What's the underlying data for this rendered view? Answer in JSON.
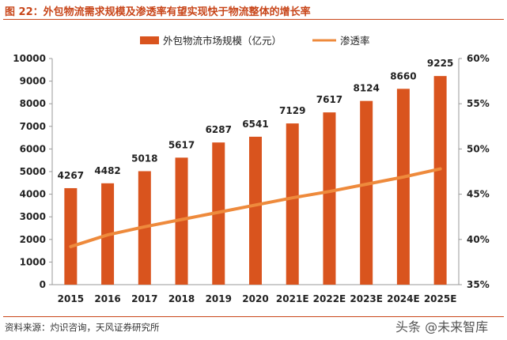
{
  "figure": {
    "title": "图 22：外包物流需求规模及渗透率有望实现快于物流整体的增长率",
    "source": "资料来源：灼识咨询，天风证券研究所",
    "watermark": "头条 @未来智库"
  },
  "colors": {
    "bar": "#d9541e",
    "line": "#ee8a3c",
    "title": "#c8461a"
  },
  "chart_data": {
    "type": "bar",
    "categories": [
      "2015",
      "2016",
      "2017",
      "2018",
      "2019",
      "2020",
      "2021E",
      "2022E",
      "2023E",
      "2024E",
      "2025E"
    ],
    "series": [
      {
        "name": "外包物流市场规模（亿元）",
        "type": "bar",
        "axis": "left",
        "values": [
          4267,
          4482,
          5018,
          5617,
          6287,
          6541,
          7129,
          7617,
          8124,
          8660,
          9225
        ]
      },
      {
        "name": "渗透率",
        "type": "line",
        "axis": "right",
        "values": [
          39.2,
          40.5,
          41.4,
          42.2,
          43.0,
          43.8,
          44.6,
          45.3,
          46.1,
          46.9,
          47.8
        ]
      }
    ],
    "ylim_left": [
      0,
      10000
    ],
    "yticks_left": [
      0,
      1000,
      2000,
      3000,
      4000,
      5000,
      6000,
      7000,
      8000,
      9000,
      10000
    ],
    "ylim_right": [
      35,
      60
    ],
    "yticks_right": [
      "35%",
      "40%",
      "45%",
      "50%",
      "55%",
      "60%"
    ],
    "data_labels": [
      "4267",
      "4482",
      "5018",
      "5617",
      "6287",
      "6541",
      "7129",
      "7617",
      "8124",
      "8660",
      "9225"
    ],
    "legend_position": "top",
    "grid": false
  }
}
